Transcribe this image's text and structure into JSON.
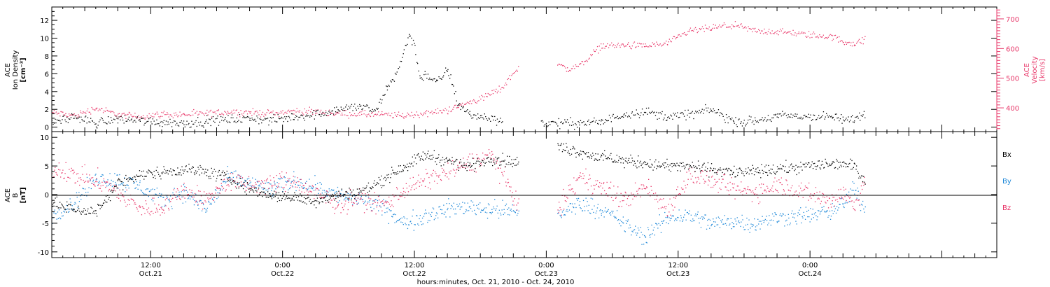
{
  "colors": {
    "black": "#000000",
    "red": "#e8386a",
    "blue": "#1e88d8",
    "axis": "#000000"
  },
  "panels": {
    "top": {
      "ylabel_lines": [
        "ACE",
        "Ion Density",
        "[cm⁻³]"
      ],
      "right_ylabel_lines": [
        "ACE",
        "Velocity",
        "[km/s]"
      ],
      "yticks": [
        "0",
        "2",
        "4",
        "6",
        "8",
        "10",
        "12"
      ],
      "right_yticks": [
        "400",
        "500",
        "600",
        "700"
      ]
    },
    "bottom": {
      "ylabel_lines": [
        "ACE",
        "B",
        "[nT]"
      ],
      "yticks": [
        "-10",
        "-5",
        "0",
        "5",
        "10"
      ],
      "legend": [
        "Bx",
        "By",
        "Bz"
      ]
    }
  },
  "xaxis": {
    "tick_times": [
      "12:00",
      "0:00",
      "12:00",
      "0:00",
      "12:00",
      "0:00"
    ],
    "tick_dates": [
      "Oct.21",
      "Oct.22",
      "Oct.22",
      "Oct.23",
      "Oct.23",
      "Oct.24"
    ],
    "xlabel": "hours:minutes, Oct. 21, 2010 - Oct. 24, 2010"
  },
  "chart_data": [
    {
      "type": "scatter",
      "title": "",
      "xlabel": "hours:minutes, Oct. 21, 2010 - Oct. 24, 2010",
      "ylabel": "ACE Ion Density [cm⁻³]",
      "y2label": "ACE Velocity [km/s]",
      "xlim": [
        "2010-10-21 03:00",
        "2010-10-24 17:00"
      ],
      "ylim": [
        -0.5,
        13.5
      ],
      "y2lim": [
        320,
        740
      ],
      "series": [
        {
          "name": "Ion Density",
          "axis": "left",
          "color": "#000000",
          "x": [
            "2010-10-21 03:00",
            "2010-10-21 05:00",
            "2010-10-21 07:00",
            "2010-10-21 09:00",
            "2010-10-21 11:00",
            "2010-10-21 13:00",
            "2010-10-21 15:00",
            "2010-10-21 17:00",
            "2010-10-21 19:00",
            "2010-10-21 21:00",
            "2010-10-21 23:00",
            "2010-10-22 01:00",
            "2010-10-22 03:00",
            "2010-10-22 05:00",
            "2010-10-22 07:00",
            "2010-10-22 08:30",
            "2010-10-22 09:30",
            "2010-10-22 10:30",
            "2010-10-22 11:30",
            "2010-10-22 12:00",
            "2010-10-22 12:30",
            "2010-10-22 13:00",
            "2010-10-22 14:00",
            "2010-10-22 15:00",
            "2010-10-22 16:00",
            "2010-10-22 17:00",
            "2010-10-22 18:00",
            "2010-10-22 20:00",
            "2010-10-22 21:30",
            "2010-10-22 23:30",
            "2010-10-23 01:00",
            "2010-10-23 03:00",
            "2010-10-23 05:00",
            "2010-10-23 07:00",
            "2010-10-23 09:00",
            "2010-10-23 11:00",
            "2010-10-23 13:00",
            "2010-10-23 15:00",
            "2010-10-23 17:00",
            "2010-10-23 19:00",
            "2010-10-23 21:00",
            "2010-10-24 02:00",
            "2010-10-24 03:00",
            "2010-10-24 04:00",
            "2010-10-24 05:00"
          ],
          "values": [
            0.6,
            1.2,
            0.5,
            1.0,
            0.8,
            0.6,
            0.5,
            0.7,
            0.9,
            1.0,
            0.8,
            1.2,
            1.5,
            2.0,
            2.4,
            1.8,
            4.5,
            6.5,
            10.5,
            9.0,
            5.5,
            6.0,
            5.0,
            6.5,
            2.5,
            1.5,
            1.2,
            0.8,
            null,
            0.5,
            0.5,
            0.5,
            0.6,
            1.5,
            1.8,
            1.2,
            1.5,
            2.0,
            0.7,
            0.7,
            1.3,
            1.2,
            0.8,
            1.0,
            1.5
          ]
        },
        {
          "name": "Velocity",
          "axis": "right",
          "color": "#e8386a",
          "x": [
            "2010-10-21 03:00",
            "2010-10-21 05:00",
            "2010-10-21 07:00",
            "2010-10-21 09:00",
            "2010-10-21 11:00",
            "2010-10-21 13:00",
            "2010-10-21 15:00",
            "2010-10-21 17:00",
            "2010-10-21 19:00",
            "2010-10-21 21:00",
            "2010-10-21 23:00",
            "2010-10-22 01:00",
            "2010-10-22 03:00",
            "2010-10-22 05:00",
            "2010-10-22 07:00",
            "2010-10-22 09:00",
            "2010-10-22 11:00",
            "2010-10-22 13:00",
            "2010-10-22 15:00",
            "2010-10-22 17:00",
            "2010-10-22 18:30",
            "2010-10-22 20:00",
            "2010-10-22 21:30",
            "2010-10-22 23:30",
            "2010-10-23 01:00",
            "2010-10-23 02:00",
            "2010-10-23 03:00",
            "2010-10-23 05:00",
            "2010-10-23 07:00",
            "2010-10-23 09:00",
            "2010-10-23 11:00",
            "2010-10-23 13:00",
            "2010-10-23 15:00",
            "2010-10-23 17:00",
            "2010-10-23 19:00",
            "2010-10-23 21:00",
            "2010-10-24 02:00",
            "2010-10-24 03:00",
            "2010-10-24 04:00",
            "2010-10-24 05:00"
          ],
          "values": [
            385,
            375,
            400,
            378,
            372,
            380,
            378,
            382,
            388,
            386,
            383,
            390,
            388,
            382,
            380,
            378,
            375,
            383,
            393,
            420,
            440,
            470,
            545,
            null,
            548,
            530,
            545,
            610,
            612,
            610,
            618,
            660,
            670,
            680,
            660,
            658,
            640,
            625,
            618,
            630
          ]
        }
      ]
    },
    {
      "type": "scatter",
      "title": "",
      "xlabel": "hours:minutes, Oct. 21, 2010 - Oct. 24, 2010",
      "ylabel": "ACE B [nT]",
      "xlim": [
        "2010-10-21 03:00",
        "2010-10-24 17:00"
      ],
      "ylim": [
        -11,
        11
      ],
      "series": [
        {
          "name": "Bx",
          "color": "#000000",
          "x": [
            "2010-10-21 03:00",
            "2010-10-21 05:00",
            "2010-10-21 07:00",
            "2010-10-21 09:00",
            "2010-10-21 11:00",
            "2010-10-21 13:00",
            "2010-10-21 15:00",
            "2010-10-21 17:00",
            "2010-10-21 19:00",
            "2010-10-21 21:00",
            "2010-10-21 23:00",
            "2010-10-22 01:00",
            "2010-10-22 03:00",
            "2010-10-22 05:00",
            "2010-10-22 07:00",
            "2010-10-22 09:00",
            "2010-10-22 11:00",
            "2010-10-22 13:00",
            "2010-10-22 15:00",
            "2010-10-22 17:00",
            "2010-10-22 19:00",
            "2010-10-22 21:30",
            "2010-10-22 23:30",
            "2010-10-23 01:00",
            "2010-10-23 03:00",
            "2010-10-23 05:00",
            "2010-10-23 07:00",
            "2010-10-23 09:00",
            "2010-10-23 11:00",
            "2010-10-23 13:00",
            "2010-10-23 15:00",
            "2010-10-23 17:00",
            "2010-10-23 19:00",
            "2010-10-23 21:00",
            "2010-10-24 02:00",
            "2010-10-24 03:00",
            "2010-10-24 04:00",
            "2010-10-24 05:00"
          ],
          "values": [
            -1.5,
            -2.5,
            -3.0,
            2.0,
            3.5,
            4.0,
            4.5,
            4.0,
            3.0,
            1.0,
            0.0,
            -0.5,
            -1.0,
            0.0,
            0.5,
            2.5,
            5.0,
            7.0,
            6.0,
            5.0,
            6.5,
            5.5,
            null,
            8.5,
            7.5,
            6.5,
            6.0,
            5.5,
            5.0,
            5.0,
            4.5,
            4.0,
            4.0,
            4.5,
            5.5,
            5.5,
            5.0,
            2.5
          ]
        },
        {
          "name": "By",
          "color": "#1e88d8",
          "x": [
            "2010-10-21 03:00",
            "2010-10-21 05:00",
            "2010-10-21 07:00",
            "2010-10-21 09:00",
            "2010-10-21 11:00",
            "2010-10-21 13:00",
            "2010-10-21 15:00",
            "2010-10-21 17:00",
            "2010-10-21 19:00",
            "2010-10-21 21:00",
            "2010-10-21 23:00",
            "2010-10-22 01:00",
            "2010-10-22 03:00",
            "2010-10-22 05:00",
            "2010-10-22 07:00",
            "2010-10-22 09:00",
            "2010-10-22 11:00",
            "2010-10-22 13:00",
            "2010-10-22 15:00",
            "2010-10-22 17:00",
            "2010-10-22 19:00",
            "2010-10-22 21:30",
            "2010-10-22 23:30",
            "2010-10-23 01:00",
            "2010-10-23 03:00",
            "2010-10-23 05:00",
            "2010-10-23 07:00",
            "2010-10-23 09:00",
            "2010-10-23 11:00",
            "2010-10-23 13:00",
            "2010-10-23 15:00",
            "2010-10-23 17:00",
            "2010-10-23 19:00",
            "2010-10-23 21:00",
            "2010-10-24 02:00",
            "2010-10-24 03:00",
            "2010-10-24 04:00",
            "2010-10-24 05:00"
          ],
          "values": [
            -3.5,
            -1.5,
            3.0,
            2.5,
            1.5,
            -1.0,
            0.5,
            -2.5,
            3.0,
            2.0,
            1.0,
            2.5,
            1.5,
            0.0,
            -1.0,
            -2.0,
            -5.0,
            -3.5,
            -2.5,
            -2.0,
            -2.5,
            -3.0,
            null,
            -3.5,
            -1.5,
            -2.5,
            -5.0,
            -7.5,
            -4.0,
            -3.5,
            -5.0,
            -4.5,
            -5.0,
            -4.0,
            -3.0,
            -1.5,
            1.0,
            -2.5
          ]
        },
        {
          "name": "Bz",
          "color": "#e8386a",
          "x": [
            "2010-10-21 03:00",
            "2010-10-21 05:00",
            "2010-10-21 07:00",
            "2010-10-21 09:00",
            "2010-10-21 11:00",
            "2010-10-21 13:00",
            "2010-10-21 15:00",
            "2010-10-21 17:00",
            "2010-10-21 19:00",
            "2010-10-21 21:00",
            "2010-10-21 23:00",
            "2010-10-22 01:00",
            "2010-10-22 03:00",
            "2010-10-22 05:00",
            "2010-10-22 07:00",
            "2010-10-22 09:00",
            "2010-10-22 11:00",
            "2010-10-22 13:00",
            "2010-10-22 15:00",
            "2010-10-22 17:00",
            "2010-10-22 19:00",
            "2010-10-22 21:30",
            "2010-10-22 23:30",
            "2010-10-23 01:00",
            "2010-10-23 03:00",
            "2010-10-23 05:00",
            "2010-10-23 07:00",
            "2010-10-23 09:00",
            "2010-10-23 11:00",
            "2010-10-23 13:00",
            "2010-10-23 15:00",
            "2010-10-23 17:00",
            "2010-10-23 19:00",
            "2010-10-23 21:00",
            "2010-10-24 02:00",
            "2010-10-24 03:00",
            "2010-10-24 04:00",
            "2010-10-24 05:00"
          ],
          "values": [
            4.5,
            3.5,
            2.5,
            0.5,
            -2.5,
            -2.0,
            1.0,
            -1.0,
            2.5,
            1.5,
            2.0,
            2.5,
            0.0,
            -1.5,
            -0.5,
            -2.0,
            1.0,
            2.5,
            4.0,
            5.5,
            7.0,
            -2.0,
            null,
            -2.5,
            3.0,
            1.5,
            -1.0,
            1.5,
            -2.5,
            3.5,
            2.5,
            1.0,
            0.5,
            2.0,
            -1.0,
            0.5,
            -2.0,
            3.0
          ]
        }
      ]
    }
  ]
}
